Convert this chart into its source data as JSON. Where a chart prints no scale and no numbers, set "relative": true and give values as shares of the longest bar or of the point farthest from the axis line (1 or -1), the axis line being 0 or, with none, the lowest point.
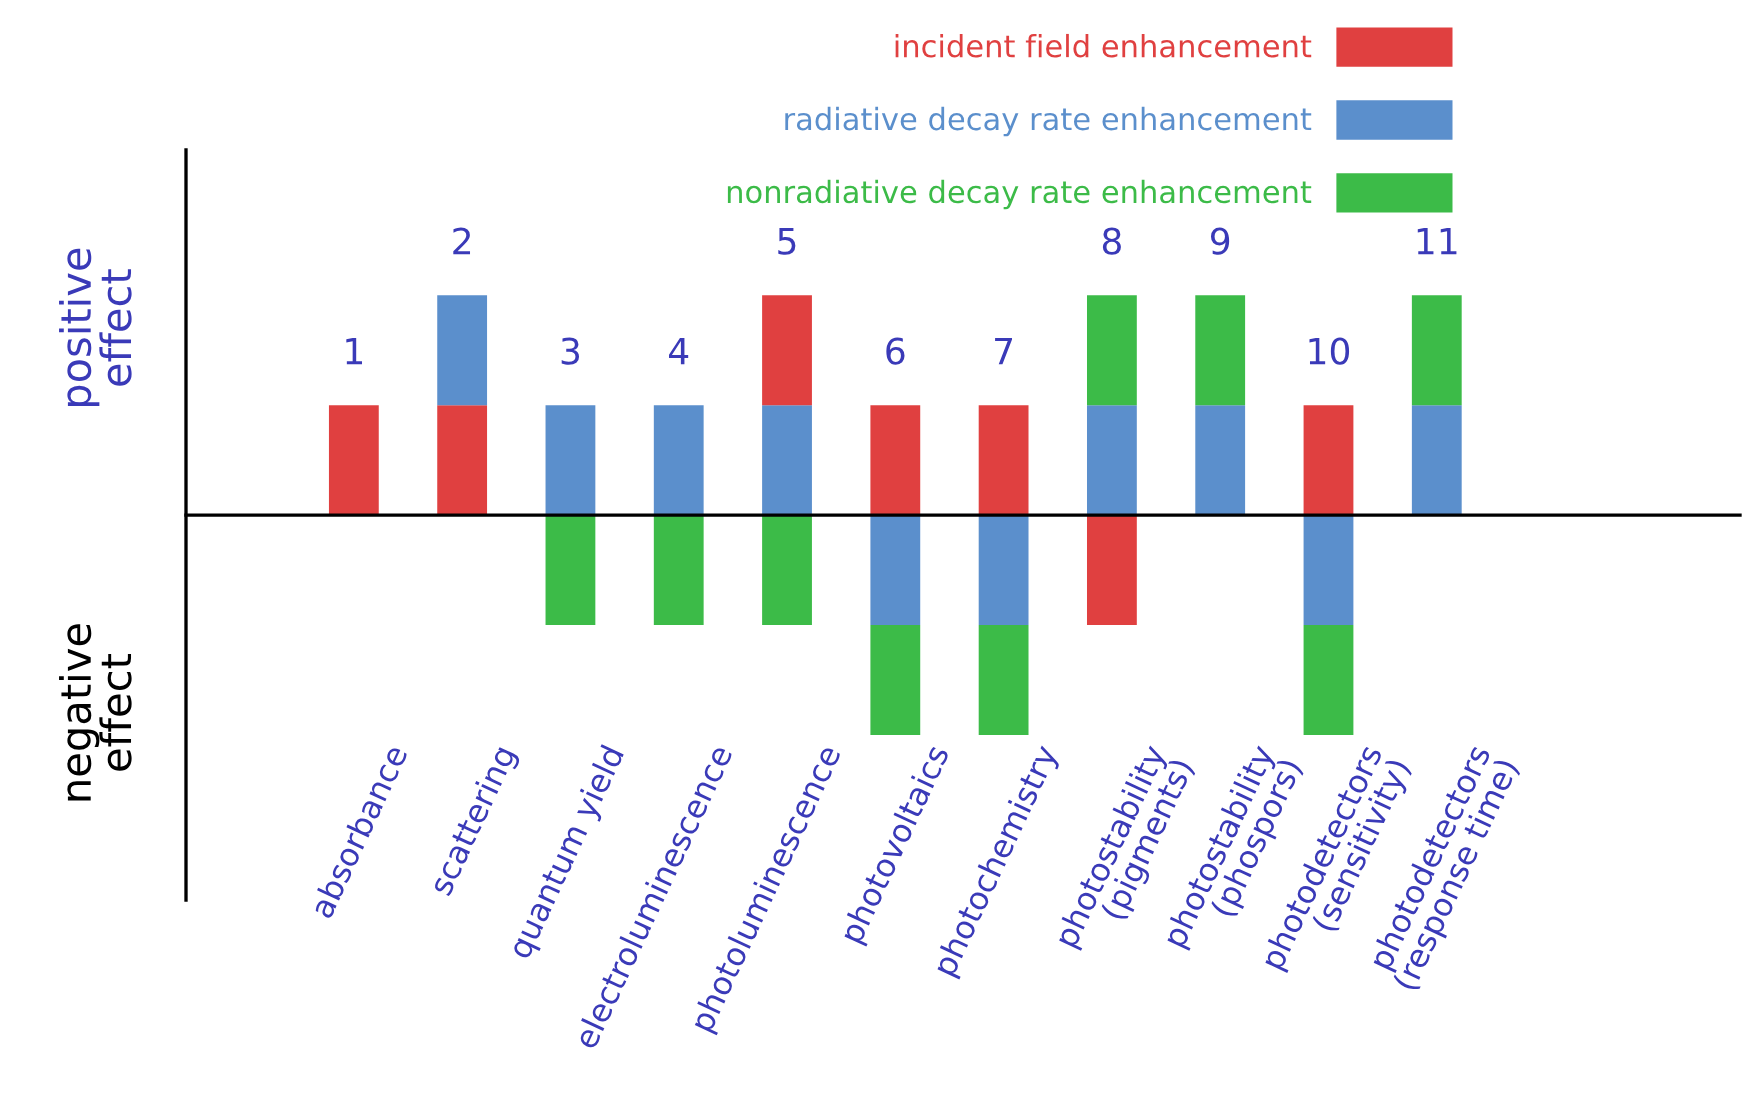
{
  "chart_data": {
    "type": "bar",
    "relative": true,
    "stacked": true,
    "legend": "top",
    "categories": [
      "absorbance",
      "scattering",
      "quantum yield",
      "electroluminescence",
      "photoluminescence",
      "photovoltaics",
      "photochemistry",
      "photostability (pigments)",
      "photostability (phospors)",
      "photodetectors (sensitivity)",
      "photodetectors (response time)"
    ],
    "series": [
      {
        "name": "incident field enhancement",
        "color": "#e04040",
        "values": [
          0.5,
          0.5,
          null,
          null,
          null,
          0.5,
          0.5,
          -0.5,
          null,
          0.5,
          null
        ]
      },
      {
        "name": "radiative decay rate enhancement",
        "color": "#5b8fcc",
        "values": [
          null,
          0.5,
          0.5,
          0.5,
          0.5,
          -0.5,
          -0.5,
          0.5,
          0.5,
          -0.5,
          0.5
        ]
      },
      {
        "name": "nonradiative decay rate enhancement",
        "color": "#3cbb48",
        "values": [
          null,
          null,
          -0.5,
          -0.5,
          -0.5,
          -0.5,
          -0.5,
          0.5,
          0.5,
          -0.5,
          0.5
        ]
      },
      {
        "color": "#e04040",
        "values": [
          null,
          null,
          null,
          null,
          0.5,
          null,
          null,
          null,
          null,
          null,
          null
        ]
      }
    ],
    "annotations": [
      "positive\neffect",
      "negative\neffect",
      {
        "text": "1",
        "x": "absorbance",
        "y": 0.5
      },
      {
        "text": "2",
        "x": "scattering",
        "y": 1
      },
      {
        "text": "3",
        "x": "quantum yield",
        "y": 0.5
      },
      {
        "text": "4",
        "x": "electroluminescence",
        "y": 0.5
      },
      {
        "text": "5",
        "x": "photoluminescence",
        "y": 1
      },
      {
        "text": "6",
        "x": "photovoltaics",
        "y": 0.5
      },
      {
        "text": "7",
        "x": "photochemistry",
        "y": 0.5
      },
      {
        "text": "8",
        "x": "photostability (pigments)",
        "y": 1
      },
      {
        "text": "9",
        "x": "photostability (phospors)",
        "y": 1
      },
      {
        "text": "10",
        "x": "photodetectors (sensitivity)",
        "y": 0.5
      },
      {
        "text": "11",
        "x": "photodetectors (response time)",
        "y": 1
      }
    ]
  }
}
